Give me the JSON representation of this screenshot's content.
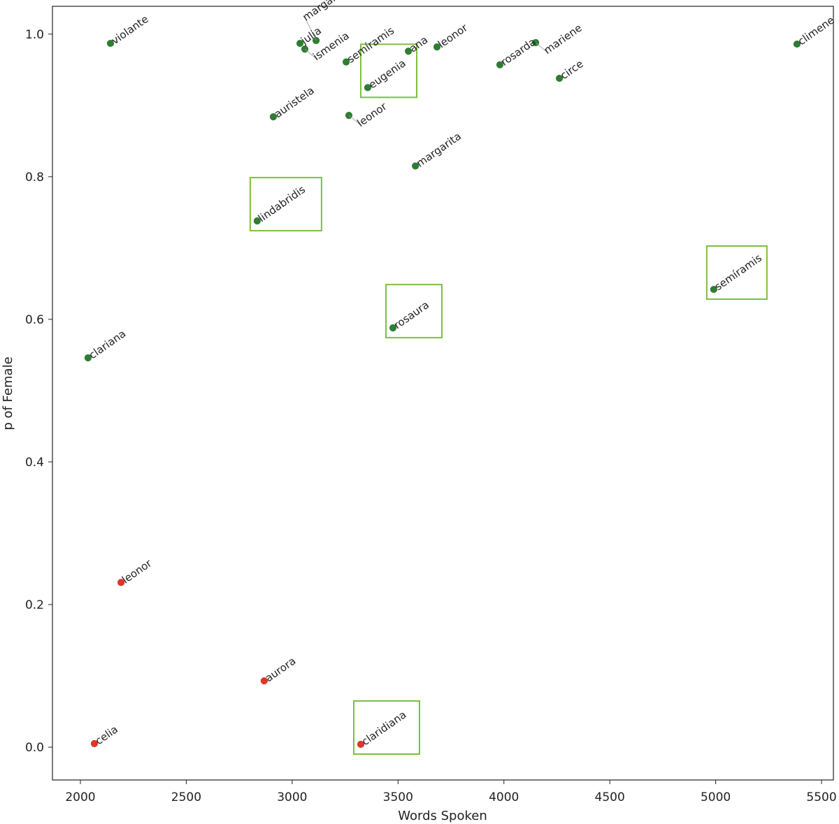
{
  "chart_data": {
    "type": "scatter",
    "title": "",
    "xlabel": "Words Spoken",
    "ylabel": "p of Female",
    "xlim": [
      1868,
      5556
    ],
    "ylim": [
      -0.046,
      1.039
    ],
    "xticks": [
      2000,
      2500,
      3000,
      3500,
      4000,
      4500,
      5000,
      5500
    ],
    "yticks": [
      0.0,
      0.2,
      0.4,
      0.6,
      0.8,
      1.0
    ],
    "grid": false,
    "colors": {
      "female": "#2e7d32",
      "male": "#e0352b",
      "highlight_box": "#7cbf3f"
    },
    "points": [
      {
        "label": "violante",
        "x": 2142,
        "y": 0.987,
        "cls": "female",
        "boxed": false
      },
      {
        "label": "julia",
        "x": 3037,
        "y": 0.987,
        "cls": "female",
        "boxed": false
      },
      {
        "label": "ismenia",
        "x": 3060,
        "y": 0.979,
        "cls": "female",
        "boxed": false
      },
      {
        "label": "margarita",
        "x": 3113,
        "y": 0.991,
        "cls": "female",
        "boxed": false
      },
      {
        "label": "semíramis",
        "x": 3255,
        "y": 0.961,
        "cls": "female",
        "boxed": false
      },
      {
        "label": "ana",
        "x": 3549,
        "y": 0.976,
        "cls": "female",
        "boxed": false
      },
      {
        "label": "leonor",
        "x": 3684,
        "y": 0.982,
        "cls": "female",
        "boxed": false
      },
      {
        "label": "eugenia",
        "x": 3357,
        "y": 0.925,
        "cls": "female",
        "boxed": true
      },
      {
        "label": "auristela",
        "x": 2911,
        "y": 0.884,
        "cls": "female",
        "boxed": false
      },
      {
        "label": "leonor",
        "x": 3268,
        "y": 0.886,
        "cls": "female",
        "boxed": false
      },
      {
        "label": "rosarda",
        "x": 3981,
        "y": 0.957,
        "cls": "female",
        "boxed": false
      },
      {
        "label": "mariene",
        "x": 4150,
        "y": 0.988,
        "cls": "female",
        "boxed": false
      },
      {
        "label": "circe",
        "x": 4262,
        "y": 0.938,
        "cls": "female",
        "boxed": false
      },
      {
        "label": "climene",
        "x": 5384,
        "y": 0.986,
        "cls": "female",
        "boxed": false
      },
      {
        "label": "margarita",
        "x": 3582,
        "y": 0.815,
        "cls": "female",
        "boxed": false
      },
      {
        "label": "lindabridis",
        "x": 2835,
        "y": 0.738,
        "cls": "female",
        "boxed": true
      },
      {
        "label": "semíramis",
        "x": 4991,
        "y": 0.642,
        "cls": "female",
        "boxed": true
      },
      {
        "label": "rosaura",
        "x": 3476,
        "y": 0.588,
        "cls": "female",
        "boxed": true
      },
      {
        "label": "clariana",
        "x": 2036,
        "y": 0.546,
        "cls": "female",
        "boxed": false
      },
      {
        "label": "leonor",
        "x": 2192,
        "y": 0.231,
        "cls": "male",
        "boxed": false
      },
      {
        "label": "aurora",
        "x": 2868,
        "y": 0.093,
        "cls": "male",
        "boxed": false
      },
      {
        "label": "celia",
        "x": 2066,
        "y": 0.005,
        "cls": "male",
        "boxed": false
      },
      {
        "label": "claridiana",
        "x": 3324,
        "y": 0.004,
        "cls": "male",
        "boxed": true
      }
    ]
  }
}
